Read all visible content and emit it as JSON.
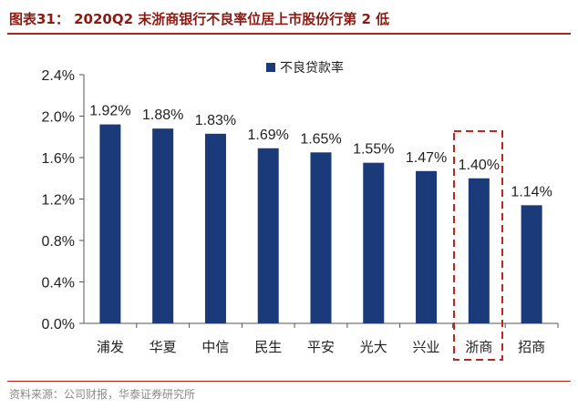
{
  "figure": {
    "title": "图表31：   2020Q2 末浙商银行不良率位居上市股份行第 2 低",
    "source": "资料来源：公司财报，华泰证券研究所"
  },
  "colors": {
    "bar": "#1b3a7a",
    "accent_red": "#c0271c",
    "title_color": "#8b1a12"
  },
  "chart_data": {
    "type": "bar",
    "categories": [
      "浦发",
      "华夏",
      "中信",
      "民生",
      "平安",
      "光大",
      "兴业",
      "浙商",
      "招商"
    ],
    "series": [
      {
        "name": "不良贷款率",
        "values": [
          1.92,
          1.88,
          1.83,
          1.69,
          1.65,
          1.55,
          1.47,
          1.4,
          1.14
        ],
        "labels": [
          "1.92%",
          "1.88%",
          "1.83%",
          "1.69%",
          "1.65%",
          "1.55%",
          "1.47%",
          "1.40%",
          "1.14%"
        ]
      }
    ],
    "ylim": [
      0,
      2.4
    ],
    "yticks": [
      "0.0%",
      "0.4%",
      "0.8%",
      "1.2%",
      "1.6%",
      "2.0%",
      "2.4%"
    ],
    "xlabel": "",
    "ylabel": "",
    "grid": false,
    "legend_position": "top-right",
    "highlighted_category": "浙商"
  }
}
